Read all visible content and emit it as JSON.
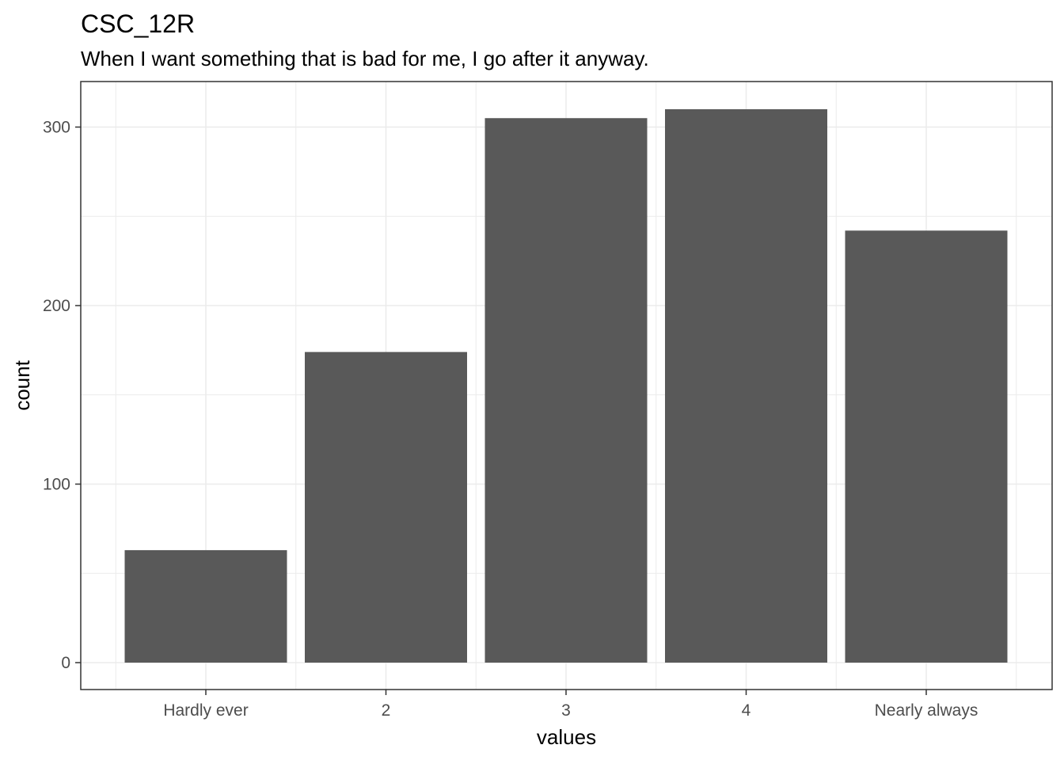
{
  "chart_data": {
    "type": "bar",
    "title": "CSC_12R",
    "subtitle": "When I want something that is bad for me, I go after it anyway.",
    "xlabel": "values",
    "ylabel": "count",
    "categories": [
      "Hardly ever",
      "2",
      "3",
      "4",
      "Nearly always"
    ],
    "values": [
      63,
      174,
      305,
      310,
      242
    ],
    "ylim": [
      0,
      325
    ],
    "yticks": [
      0,
      100,
      200,
      300
    ],
    "grid": true,
    "legend": "none",
    "colors": {
      "bar": "#595959",
      "panel_border": "#333333",
      "grid": "#ebebeb",
      "tick_label": "#4d4d4d"
    }
  }
}
